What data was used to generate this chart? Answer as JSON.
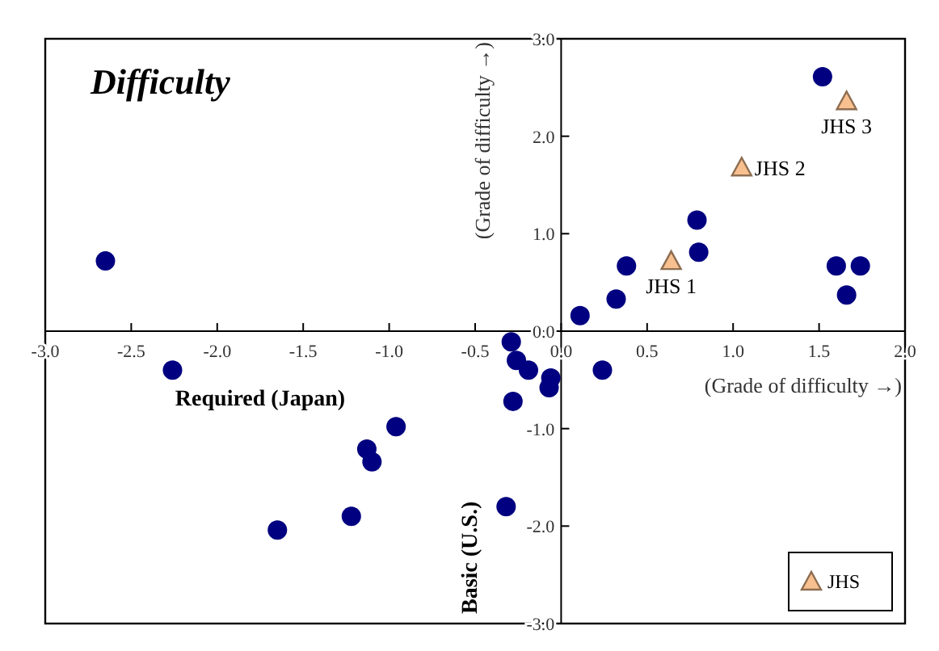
{
  "chart_data": {
    "type": "scatter",
    "title": "Difficulty",
    "xlabel": "(Grade of difficulty →)",
    "ylabel": "(Grade of difficulty →)",
    "annotations": [
      "Required (Japan)",
      "Basic (U.S.)",
      {
        "text": "JHS 1",
        "x": 0.64,
        "y": 0.72
      },
      {
        "text": "JHS 2",
        "x": 1.05,
        "y": 1.68
      },
      {
        "text": "JHS 3",
        "x": 1.66,
        "y": 2.36
      }
    ],
    "xlim": [
      -3,
      2
    ],
    "ylim": [
      -3,
      3
    ],
    "xticks": [
      {
        "value": -3,
        "label": "-3.0"
      },
      {
        "value": -2.5,
        "label": "-2.5"
      },
      {
        "value": -2,
        "label": "-2.0"
      },
      {
        "value": -1.5,
        "label": "-1.5"
      },
      {
        "value": -1,
        "label": "-1.0"
      },
      {
        "value": -0.5,
        "label": "-0.5"
      },
      {
        "value": 0,
        "label": "0.0"
      },
      {
        "value": 0.5,
        "label": "0.5"
      },
      {
        "value": 1,
        "label": "1.0"
      },
      {
        "value": 1.5,
        "label": "1.5"
      },
      {
        "value": 2,
        "label": "2.0"
      }
    ],
    "yticks": [
      {
        "value": -3,
        "label": "-3.0"
      },
      {
        "value": -2,
        "label": "-2.0"
      },
      {
        "value": -1,
        "label": "-1.0"
      },
      {
        "value": 0,
        "label": "0.0"
      },
      {
        "value": 1,
        "label": "1.0"
      },
      {
        "value": 2,
        "label": "2.0"
      },
      {
        "value": 3,
        "label": "3.0"
      }
    ],
    "grid": false,
    "legend": "bottom right",
    "series": [
      {
        "color": "#000080",
        "marker": "circle",
        "x": [
          -2.65,
          -2.26,
          -1.65,
          -1.22,
          -1.13,
          -1.1,
          -0.96,
          -0.29,
          -0.26,
          -0.19,
          -0.28,
          -0.32,
          -0.07,
          -0.06,
          0.24,
          0.11,
          0.32,
          0.38,
          0.79,
          0.8,
          1.52,
          1.6,
          1.66,
          1.74
        ],
        "values": [
          0.72,
          -0.4,
          -2.04,
          -1.9,
          -1.21,
          -1.34,
          -0.98,
          -0.11,
          -0.3,
          -0.4,
          -0.72,
          -1.8,
          -0.58,
          -0.48,
          -0.4,
          0.16,
          0.33,
          0.67,
          1.14,
          0.81,
          2.61,
          0.67,
          0.37,
          0.67
        ]
      },
      {
        "name": "JHS",
        "color": "#f9c08f",
        "marker": "triangle",
        "x": [
          0.64,
          1.05,
          1.66
        ],
        "values": [
          0.72,
          1.68,
          2.36
        ]
      }
    ]
  }
}
